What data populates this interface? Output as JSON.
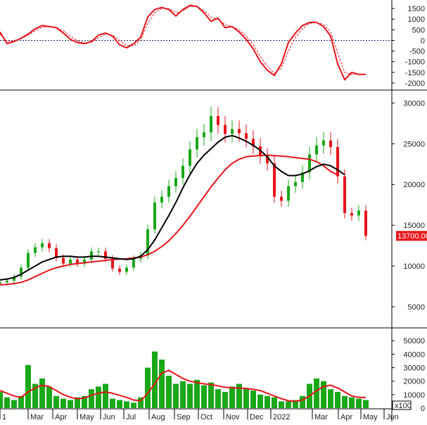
{
  "chart_data": [
    {
      "type": "line",
      "panel": "macd",
      "ylim": [
        -2300,
        1900
      ],
      "yticks": [
        1500,
        1000,
        500,
        0,
        -500,
        -1000,
        -1500,
        -2000
      ],
      "ytick_labels": [
        "1500",
        "1000",
        "500",
        "0",
        "-500",
        "-1000",
        "-1500",
        "-2000"
      ],
      "zero_line": true,
      "colors": {
        "macd": "#e8141c",
        "signal": "#e8141c"
      },
      "x": [
        0,
        10,
        20,
        30,
        40,
        50,
        60,
        70,
        80,
        90,
        100,
        110,
        120,
        130,
        140,
        150,
        160,
        170,
        180,
        190,
        200,
        210,
        220,
        230,
        240,
        250,
        260,
        270,
        280,
        290,
        300,
        310,
        320,
        330,
        340,
        350,
        360,
        370,
        380,
        390,
        400,
        410,
        420,
        430,
        440,
        450,
        460,
        470,
        480,
        490,
        500,
        510,
        520
      ],
      "series": [
        {
          "role": "macd",
          "values": [
            400,
            -150,
            -50,
            100,
            300,
            550,
            700,
            650,
            600,
            350,
            50,
            -100,
            -150,
            -50,
            250,
            350,
            200,
            -200,
            -350,
            -150,
            150,
            1100,
            1450,
            1550,
            1450,
            1150,
            1450,
            1650,
            1600,
            1300,
            900,
            1050,
            600,
            650,
            400,
            50,
            -400,
            -1000,
            -1400,
            -1650,
            -1100,
            -100,
            350,
            700,
            850,
            850,
            650,
            200,
            -1100,
            -1850,
            -1500,
            -1600,
            -1600
          ]
        },
        {
          "role": "signal",
          "values": [
            300,
            -50,
            0,
            80,
            250,
            450,
            620,
            650,
            620,
            450,
            200,
            -20,
            -120,
            -90,
            120,
            300,
            250,
            0,
            -250,
            -250,
            0,
            800,
            1300,
            1500,
            1500,
            1300,
            1400,
            1600,
            1600,
            1400,
            1100,
            1000,
            750,
            650,
            500,
            200,
            -200,
            -750,
            -1200,
            -1550,
            -1300,
            -500,
            150,
            550,
            800,
            850,
            750,
            400,
            -600,
            -1500,
            -1600,
            -1600,
            -1600
          ]
        }
      ]
    },
    {
      "type": "candlestick",
      "panel": "price",
      "ylim": [
        2500,
        31500
      ],
      "yticks": [
        5000,
        10000,
        15000,
        20000,
        25000,
        30000
      ],
      "ytick_labels": [
        "5000",
        "10000",
        "15000",
        "20000",
        "25000",
        "30000"
      ],
      "last_price_label": "13700.00",
      "colors": {
        "up": "#18a818",
        "down": "#e8141c",
        "ma_short": "#000000",
        "ma_long": "#e8141c",
        "last_price_box": "#e8141c"
      },
      "x": [
        0,
        10,
        20,
        30,
        40,
        50,
        60,
        70,
        80,
        90,
        100,
        110,
        120,
        130,
        140,
        150,
        160,
        170,
        180,
        190,
        200,
        210,
        220,
        230,
        240,
        250,
        260,
        270,
        280,
        290,
        300,
        310,
        320,
        330,
        340,
        350,
        360,
        370,
        380,
        390,
        400,
        410,
        420,
        430,
        440,
        450,
        460,
        470,
        480,
        490,
        500,
        510,
        520
      ],
      "close": [
        8000,
        8200,
        8700,
        9800,
        11600,
        12300,
        12800,
        12200,
        11000,
        10300,
        10800,
        10300,
        10800,
        11800,
        11800,
        10900,
        9700,
        9300,
        9800,
        10900,
        11300,
        14500,
        17800,
        18500,
        19800,
        20800,
        22300,
        24300,
        25800,
        26400,
        28400,
        27300,
        26200,
        26800,
        26300,
        25600,
        24700,
        23500,
        22600,
        18500,
        18000,
        19800,
        20300,
        21500,
        23700,
        24800,
        25400,
        24600,
        21000,
        16500,
        16200,
        16800,
        13700
      ],
      "series": [
        {
          "name": "",
          "role": "ma_short",
          "values": [
            8300,
            8400,
            8600,
            9000,
            9500,
            10000,
            10500,
            10800,
            11100,
            11200,
            11200,
            11100,
            11100,
            11200,
            11200,
            11100,
            11000,
            10900,
            10800,
            10900,
            11200,
            12000,
            13200,
            14700,
            16200,
            17800,
            19600,
            21200,
            22600,
            23600,
            24400,
            25200,
            25800,
            26000,
            25700,
            25300,
            24800,
            24200,
            23400,
            22300,
            21600,
            21100,
            21100,
            21300,
            21700,
            22200,
            22500,
            22300,
            21800,
            21200,
            null,
            null,
            null
          ]
        },
        {
          "name": "",
          "role": "ma_long",
          "values": [
            7700,
            7750,
            7850,
            8000,
            8300,
            8700,
            9100,
            9500,
            9800,
            10000,
            10200,
            10300,
            10400,
            10500,
            10600,
            10700,
            10800,
            10850,
            10900,
            11000,
            11100,
            11400,
            11800,
            12400,
            13100,
            14000,
            15000,
            16100,
            17300,
            18500,
            19700,
            20800,
            21800,
            22600,
            23100,
            23400,
            23500,
            23550,
            23600,
            23550,
            23500,
            23400,
            23300,
            23200,
            23100,
            22800,
            22300,
            21600,
            21200,
            null,
            null,
            null,
            null
          ]
        }
      ]
    },
    {
      "type": "bar",
      "panel": "volume",
      "ylim": [
        0,
        59000
      ],
      "yticks": [
        0,
        10000,
        20000,
        30000,
        40000,
        50000
      ],
      "ytick_labels": [
        "0",
        "10000",
        "20000",
        "30000",
        "40000",
        "50000"
      ],
      "unit_label": "x100",
      "colors": {
        "bars": "#18a818",
        "ma": "#e8141c"
      },
      "x": [
        0,
        10,
        20,
        30,
        40,
        50,
        60,
        70,
        80,
        90,
        100,
        110,
        120,
        130,
        140,
        150,
        160,
        170,
        180,
        190,
        200,
        210,
        220,
        230,
        240,
        250,
        260,
        270,
        280,
        290,
        300,
        310,
        320,
        330,
        340,
        350,
        360,
        370,
        380,
        390,
        400,
        410,
        420,
        430,
        440,
        450,
        460,
        470,
        480,
        490,
        500,
        510,
        520
      ],
      "values": [
        12000,
        8000,
        6000,
        9000,
        32000,
        18000,
        22000,
        16000,
        9000,
        7000,
        6000,
        8000,
        9000,
        14000,
        16000,
        18000,
        7000,
        6000,
        5000,
        4000,
        8000,
        30000,
        42000,
        36000,
        24000,
        18000,
        20000,
        18000,
        21000,
        17000,
        19000,
        14000,
        12000,
        16000,
        18000,
        15000,
        13000,
        10000,
        9000,
        8000,
        5000,
        5000,
        6000,
        9000,
        18000,
        22000,
        20000,
        14000,
        12000,
        9000,
        8000,
        7000,
        6000
      ],
      "series": [
        {
          "name": "",
          "role": "ma",
          "values": [
            13000,
            11000,
            9000,
            8000,
            12000,
            15000,
            17000,
            16000,
            13000,
            10000,
            8000,
            7000,
            7500,
            9500,
            11000,
            12000,
            11000,
            9500,
            8000,
            6000,
            5500,
            11000,
            18000,
            26000,
            28000,
            25000,
            22000,
            20000,
            19000,
            18000,
            17500,
            16500,
            15500,
            15000,
            15000,
            14500,
            14000,
            13000,
            11000,
            9000,
            7000,
            5500,
            5000,
            6000,
            9000,
            13000,
            16000,
            17000,
            15000,
            12000,
            9000,
            8000,
            8000
          ]
        }
      ]
    }
  ],
  "x_axis": {
    "labels": [
      {
        "text": "1",
        "x": 0
      },
      {
        "text": "Mar",
        "x": 40
      },
      {
        "text": "Apr",
        "x": 75
      },
      {
        "text": "May",
        "x": 110
      },
      {
        "text": "Jun",
        "x": 143
      },
      {
        "text": "Jul",
        "x": 176
      },
      {
        "text": "Aug",
        "x": 212
      },
      {
        "text": "Sep",
        "x": 248
      },
      {
        "text": "Oct",
        "x": 282
      },
      {
        "text": "Nov",
        "x": 318
      },
      {
        "text": "Dec",
        "x": 352
      },
      {
        "text": "2022",
        "x": 385
      },
      {
        "text": "Mar",
        "x": 444
      },
      {
        "text": "Apr",
        "x": 481
      },
      {
        "text": "May",
        "x": 513
      },
      {
        "text": "Jun",
        "x": 546
      }
    ]
  }
}
